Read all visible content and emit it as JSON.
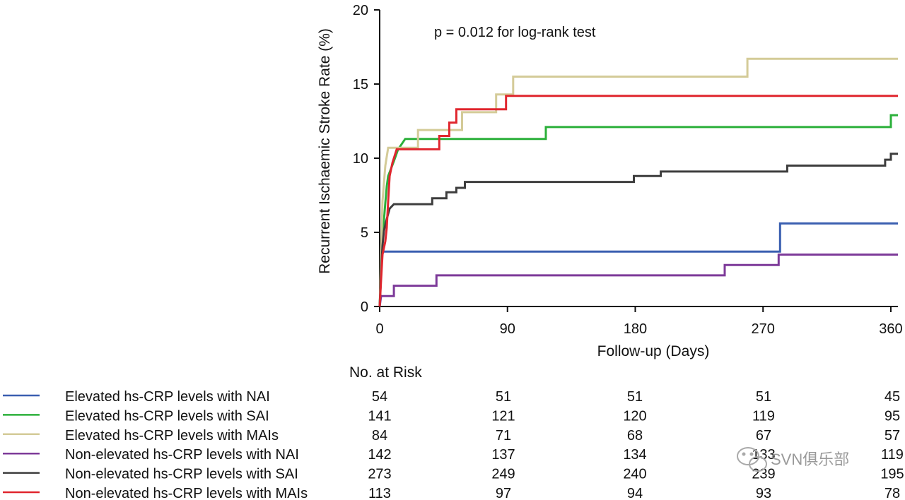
{
  "chart_data": {
    "type": "line",
    "step": true,
    "xlabel": "Follow-up (Days)",
    "ylabel": "Recurrent Ischaemic Stroke Rate  (%)",
    "xlim": [
      0,
      365
    ],
    "ylim": [
      0,
      20
    ],
    "xticks": [
      0,
      90,
      180,
      270,
      360
    ],
    "yticks": [
      0,
      5,
      10,
      15,
      20
    ],
    "grid": false,
    "annotation": "p = 0.012 for log-rank test",
    "series": [
      {
        "name": "Elevated hs-CRP levels with NAI",
        "color": "#3a5fb0",
        "points": [
          [
            0,
            0
          ],
          [
            1,
            2.2
          ],
          [
            2,
            3.7
          ],
          [
            282,
            3.7
          ],
          [
            282,
            5.6
          ],
          [
            365,
            5.6
          ]
        ]
      },
      {
        "name": "Elevated hs-CRP levels with SAI",
        "color": "#2bb03a",
        "points": [
          [
            0,
            0
          ],
          [
            1,
            2.5
          ],
          [
            2,
            4.2
          ],
          [
            3,
            5.8
          ],
          [
            4,
            7.0
          ],
          [
            5,
            8.1
          ],
          [
            6,
            8.8
          ],
          [
            8,
            9.3
          ],
          [
            10,
            9.8
          ],
          [
            13,
            10.6
          ],
          [
            18,
            11.3
          ],
          [
            117,
            11.3
          ],
          [
            117,
            12.1
          ],
          [
            360,
            12.1
          ],
          [
            360,
            12.9
          ],
          [
            365,
            12.9
          ]
        ]
      },
      {
        "name": "Elevated hs-CRP levels with MAIs",
        "color": "#d4cb98",
        "points": [
          [
            0,
            0
          ],
          [
            1,
            3.6
          ],
          [
            2,
            7.1
          ],
          [
            4,
            9.5
          ],
          [
            6,
            10.7
          ],
          [
            27,
            10.7
          ],
          [
            27,
            11.9
          ],
          [
            58,
            11.9
          ],
          [
            58,
            13.1
          ],
          [
            82,
            13.1
          ],
          [
            82,
            14.3
          ],
          [
            94,
            14.3
          ],
          [
            94,
            15.5
          ],
          [
            259,
            15.5
          ],
          [
            259,
            16.7
          ],
          [
            365,
            16.7
          ]
        ]
      },
      {
        "name": "Non-elevated hs-CRP levels with NAI",
        "color": "#7d3a99",
        "points": [
          [
            0,
            0
          ],
          [
            1,
            0.7
          ],
          [
            10,
            0.7
          ],
          [
            10,
            1.4
          ],
          [
            40,
            1.4
          ],
          [
            40,
            2.1
          ],
          [
            243,
            2.1
          ],
          [
            243,
            2.8
          ],
          [
            281,
            2.8
          ],
          [
            281,
            3.5
          ],
          [
            365,
            3.5
          ]
        ]
      },
      {
        "name": "Non-elevated hs-CRP levels with SAI",
        "color": "#3d3d3d",
        "points": [
          [
            0,
            0
          ],
          [
            1,
            2.3
          ],
          [
            2,
            4.1
          ],
          [
            3,
            5.1
          ],
          [
            5,
            5.9
          ],
          [
            7,
            6.6
          ],
          [
            10,
            6.9
          ],
          [
            17,
            6.9
          ],
          [
            37,
            6.9
          ],
          [
            37,
            7.3
          ],
          [
            47,
            7.3
          ],
          [
            47,
            7.7
          ],
          [
            54,
            7.7
          ],
          [
            54,
            8.0
          ],
          [
            60,
            8.0
          ],
          [
            60,
            8.4
          ],
          [
            179,
            8.4
          ],
          [
            179,
            8.8
          ],
          [
            198,
            8.8
          ],
          [
            198,
            9.1
          ],
          [
            287,
            9.1
          ],
          [
            287,
            9.5
          ],
          [
            356,
            9.5
          ],
          [
            356,
            9.9
          ],
          [
            360,
            9.9
          ],
          [
            360,
            10.3
          ],
          [
            365,
            10.3
          ]
        ]
      },
      {
        "name": "Non-elevated hs-CRP levels with MAIs",
        "color": "#e0262e",
        "points": [
          [
            0,
            0
          ],
          [
            1,
            1.8
          ],
          [
            2,
            3.5
          ],
          [
            4,
            4.4
          ],
          [
            5,
            5.3
          ],
          [
            6,
            7.1
          ],
          [
            7,
            8.8
          ],
          [
            9,
            9.7
          ],
          [
            12,
            10.6
          ],
          [
            42,
            10.6
          ],
          [
            42,
            11.5
          ],
          [
            49,
            11.5
          ],
          [
            49,
            12.4
          ],
          [
            54,
            12.4
          ],
          [
            54,
            13.3
          ],
          [
            89,
            13.3
          ],
          [
            89,
            14.2
          ],
          [
            365,
            14.2
          ]
        ]
      }
    ],
    "risk_table": {
      "title": "No. at Risk",
      "columns": [
        0,
        90,
        180,
        270,
        360
      ],
      "rows": [
        {
          "label": "Elevated hs-CRP levels with NAI",
          "color": "#3a5fb0",
          "values": [
            "54",
            "51",
            "51",
            "51",
            "45"
          ]
        },
        {
          "label": "Elevated hs-CRP levels with SAI",
          "color": "#2bb03a",
          "values": [
            "141",
            "121",
            "120",
            "119",
            "95"
          ]
        },
        {
          "label": "Elevated hs-CRP levels with MAIs",
          "color": "#d4cb98",
          "values": [
            "84",
            "71",
            "68",
            "67",
            "57"
          ]
        },
        {
          "label": "Non-elevated hs-CRP levels with NAI",
          "color": "#7d3a99",
          "values": [
            "142",
            "137",
            "134",
            "133",
            "119"
          ]
        },
        {
          "label": "Non-elevated hs-CRP levels with SAI",
          "color": "#3d3d3d",
          "values": [
            "273",
            "249",
            "240",
            "239",
            "195"
          ]
        },
        {
          "label": "Non-elevated hs-CRP levels with MAIs",
          "color": "#e0262e",
          "values": [
            "113",
            "97",
            "94",
            "93",
            "78"
          ]
        }
      ]
    }
  },
  "watermark": {
    "text": "SVN俱乐部",
    "icon": "wechat-icon"
  }
}
